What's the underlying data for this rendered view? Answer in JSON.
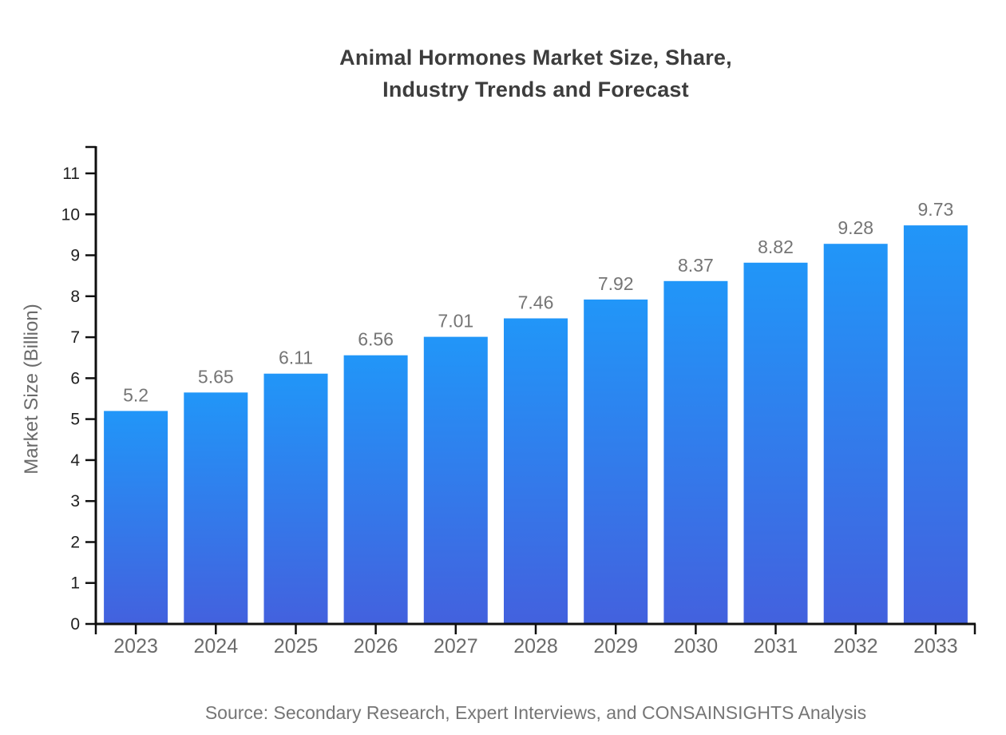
{
  "header": {
    "title_line1": "Animal Hormones Market Size, Share,",
    "title_line2": "Industry Trends and Forecast"
  },
  "y_axis_title": "Market Size (Billion)",
  "source_caption": "Source: Secondary Research, Expert Interviews, and CONSAINSIGHTS Analysis",
  "chart_data": {
    "type": "bar",
    "title": "Animal Hormones Market Size, Share, Industry Trends and Forecast",
    "xlabel": "",
    "ylabel": "Market Size (Billion)",
    "categories": [
      "2023",
      "2024",
      "2025",
      "2026",
      "2027",
      "2028",
      "2029",
      "2030",
      "2031",
      "2032",
      "2033"
    ],
    "values": [
      5.2,
      5.65,
      6.11,
      6.56,
      7.01,
      7.46,
      7.92,
      8.37,
      8.82,
      9.28,
      9.73
    ],
    "value_labels": [
      "5.2",
      "5.65",
      "6.11",
      "6.56",
      "7.01",
      "7.46",
      "7.92",
      "8.37",
      "8.82",
      "9.28",
      "9.73"
    ],
    "ylim": [
      0,
      11
    ],
    "y_ticks": [
      0,
      1,
      2,
      3,
      4,
      5,
      6,
      7,
      8,
      9,
      10,
      11
    ],
    "grid": false,
    "legend": false
  },
  "colors": {
    "background": "#ffffff",
    "title_text": "#3d3d3d",
    "axis_line": "#0f0f0f",
    "y_tick_text": "#1f1f1f",
    "x_tick_text": "#6b6b6b",
    "value_label_text": "#757575",
    "axis_title_text": "#6b6b6b",
    "source_text": "#757575",
    "bar_gradient_top": "#2196f8",
    "bar_gradient_bottom": "#4361de"
  }
}
